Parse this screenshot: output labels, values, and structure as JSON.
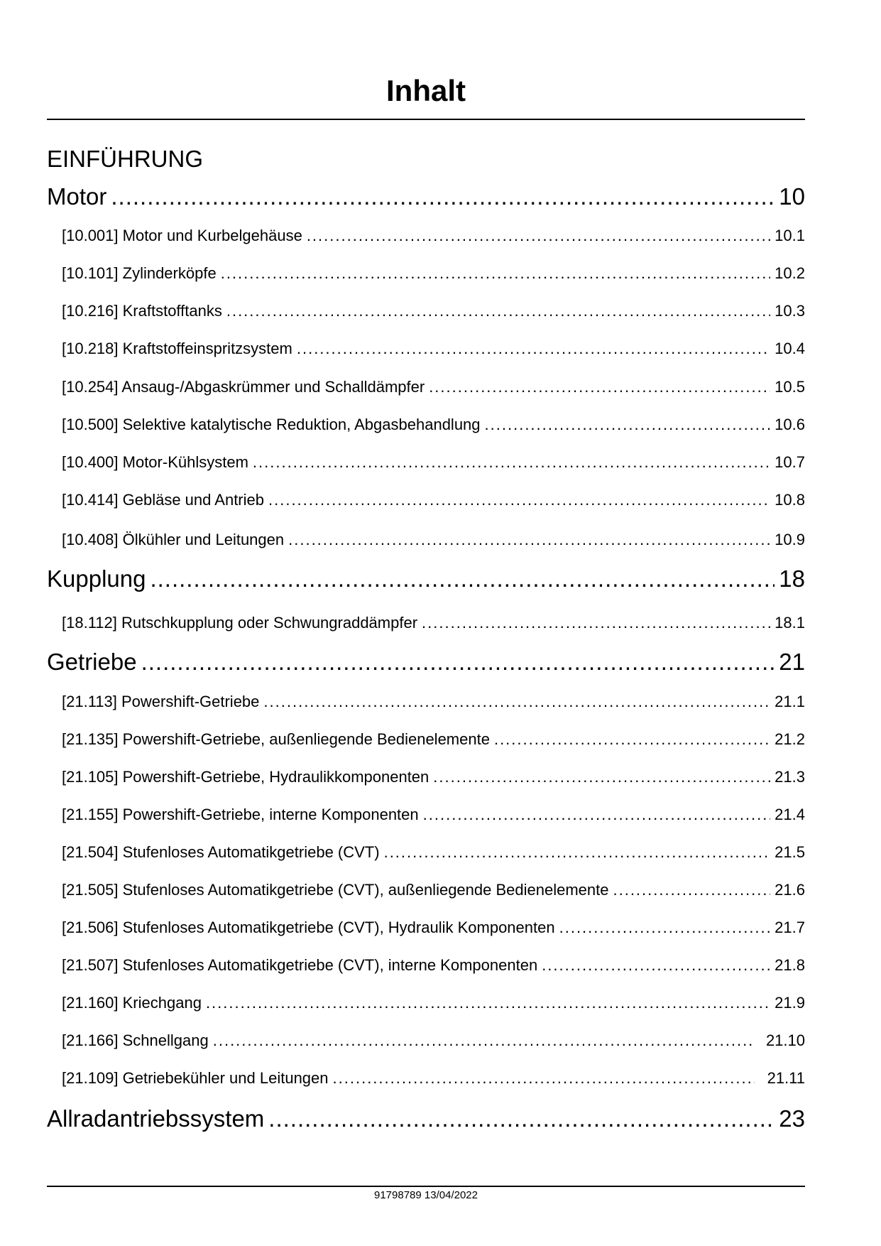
{
  "title": "Inhalt",
  "section": "EINFÜHRUNG",
  "entries": [
    {
      "label": "Motor",
      "page": "10",
      "level": 1
    },
    {
      "label": "[10.001] Motor und Kurbelgehäuse",
      "page": "10.1",
      "level": 2
    },
    {
      "label": "[10.101] Zylinderköpfe",
      "page": "10.2",
      "level": 2
    },
    {
      "label": "[10.216] Kraftstofftanks",
      "page": "10.3",
      "level": 2
    },
    {
      "label": "[10.218] Kraftstoffeinspritzsystem",
      "page": "10.4",
      "level": 2
    },
    {
      "label": "[10.254] Ansaug-/Abgaskrümmer und Schalldämpfer",
      "page": "10.5",
      "level": 2
    },
    {
      "label": "[10.500] Selektive katalytische Reduktion, Abgasbehandlung",
      "page": "10.6",
      "level": 2
    },
    {
      "label": "[10.400] Motor-Kühlsystem",
      "page": "10.7",
      "level": 2
    },
    {
      "label": "[10.414] Gebläse und Antrieb",
      "page": "10.8",
      "level": 2
    },
    {
      "label": "[10.408] Ölkühler und Leitungen",
      "page": "10.9",
      "level": 2
    },
    {
      "label": "Kupplung",
      "page": "18",
      "level": 1
    },
    {
      "label": "[18.112] Rutschkupplung oder Schwungraddämpfer",
      "page": "18.1",
      "level": 2
    },
    {
      "label": "Getriebe",
      "page": "21",
      "level": 1
    },
    {
      "label": "[21.113] Powershift-Getriebe",
      "page": "21.1",
      "level": 2
    },
    {
      "label": "[21.135] Powershift-Getriebe, außenliegende Bedienelemente",
      "page": "21.2",
      "level": 2
    },
    {
      "label": "[21.105] Powershift-Getriebe, Hydraulikkomponenten",
      "page": "21.3",
      "level": 2
    },
    {
      "label": "[21.155] Powershift-Getriebe, interne Komponenten",
      "page": "21.4",
      "level": 2
    },
    {
      "label": "[21.504] Stufenloses Automatikgetriebe (CVT)",
      "page": "21.5",
      "level": 2
    },
    {
      "label": "[21.505] Stufenloses Automatikgetriebe (CVT), außenliegende Bedienelemente",
      "page": "21.6",
      "level": 2
    },
    {
      "label": "[21.506] Stufenloses Automatikgetriebe (CVT), Hydraulik Komponenten",
      "page": "21.7",
      "level": 2
    },
    {
      "label": "[21.507] Stufenloses Automatikgetriebe (CVT), interne Komponenten",
      "page": "21.8",
      "level": 2
    },
    {
      "label": "[21.160] Kriechgang",
      "page": "21.9",
      "level": 2
    },
    {
      "label": "[21.166] Schnellgang",
      "page": "21.10",
      "level": 2
    },
    {
      "label": "[21.109] Getriebekühler und Leitungen",
      "page": "21.11",
      "level": 2
    },
    {
      "label": "Allradantriebssystem",
      "page": "23",
      "level": 1
    }
  ],
  "footer": "91798789 13/04/2022"
}
